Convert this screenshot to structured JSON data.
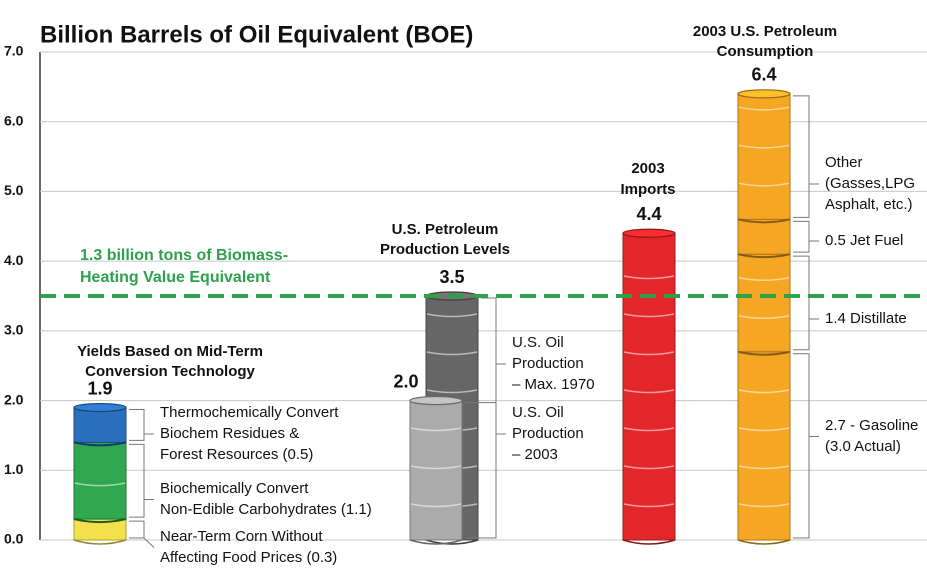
{
  "chart_data": {
    "type": "barrel",
    "title": "Billion Barrels of Oil Equivalent (BOE)",
    "ylim": [
      0,
      7
    ],
    "yticks": [
      {
        "value": 0,
        "label": "0.0"
      },
      {
        "value": 1,
        "label": "1.0"
      },
      {
        "value": 2,
        "label": "2.0"
      },
      {
        "value": 3,
        "label": "3.0"
      },
      {
        "value": 4,
        "label": "4.0"
      },
      {
        "value": 5,
        "label": "5.0"
      },
      {
        "value": 6,
        "label": "6.0"
      },
      {
        "value": 7,
        "label": "7.0"
      }
    ],
    "grid": true,
    "reference_line": {
      "value": 3.5,
      "color": "#2ca24a",
      "label": [
        "1.3 billion tons of Biomass-",
        "Heating Value Equivalent"
      ]
    },
    "groups": [
      {
        "label": [
          "Yields Based on Mid-Term",
          "Conversion Technology"
        ],
        "barrels": [
          {
            "total": 1.9,
            "value_label": "1.9",
            "segments": [
              {
                "value": 0.3,
                "color": "#f2e14c",
                "label": [
                  "Near-Term Corn Without",
                  "Affecting Food Prices (0.3)"
                ]
              },
              {
                "value": 1.1,
                "color": "#2fa84f",
                "label": [
                  "Biochemically Convert",
                  "Non-Edible Carbohydrates (1.1)"
                ]
              },
              {
                "value": 0.5,
                "color": "#2a6fbd",
                "label": [
                  "Thermochemically Convert",
                  "Biochem Residues &",
                  "Forest Resources (0.5)"
                ]
              }
            ]
          }
        ]
      },
      {
        "label": [
          "U.S. Petroleum",
          "Production Levels"
        ],
        "barrels": [
          {
            "total": 3.5,
            "value_label": "3.5",
            "segments": [
              {
                "value": 3.5,
                "color": "#666666",
                "label": [
                  "U.S. Oil",
                  "Production",
                  "– Max. 1970"
                ]
              }
            ]
          },
          {
            "total": 2.0,
            "value_label": "2.0",
            "segments": [
              {
                "value": 2.0,
                "color": "#ababab",
                "label": [
                  "U.S. Oil",
                  "Production",
                  "– 2003"
                ]
              }
            ]
          }
        ]
      },
      {
        "label": [
          "2003",
          "Imports"
        ],
        "barrels": [
          {
            "total": 4.4,
            "value_label": "4.4",
            "segments": [
              {
                "value": 4.4,
                "color": "#e3262a",
                "label": []
              }
            ]
          }
        ]
      },
      {
        "label": [
          "2003 U.S. Petroleum",
          "Consumption"
        ],
        "barrels": [
          {
            "total": 6.4,
            "value_label": "6.4",
            "segments": [
              {
                "value": 2.7,
                "color": "#f5a623",
                "label": [
                  "2.7 - Gasoline",
                  "(3.0 Actual)"
                ]
              },
              {
                "value": 1.4,
                "color": "#f5a623",
                "label": [
                  "1.4 Distillate"
                ]
              },
              {
                "value": 0.5,
                "color": "#f5a623",
                "label": [
                  "0.5 Jet Fuel"
                ]
              },
              {
                "value": 1.8,
                "color": "#f5a623",
                "label": [
                  "Other",
                  "(Gasses,LPG",
                  "Asphalt, etc.)"
                ]
              }
            ]
          }
        ]
      }
    ]
  }
}
